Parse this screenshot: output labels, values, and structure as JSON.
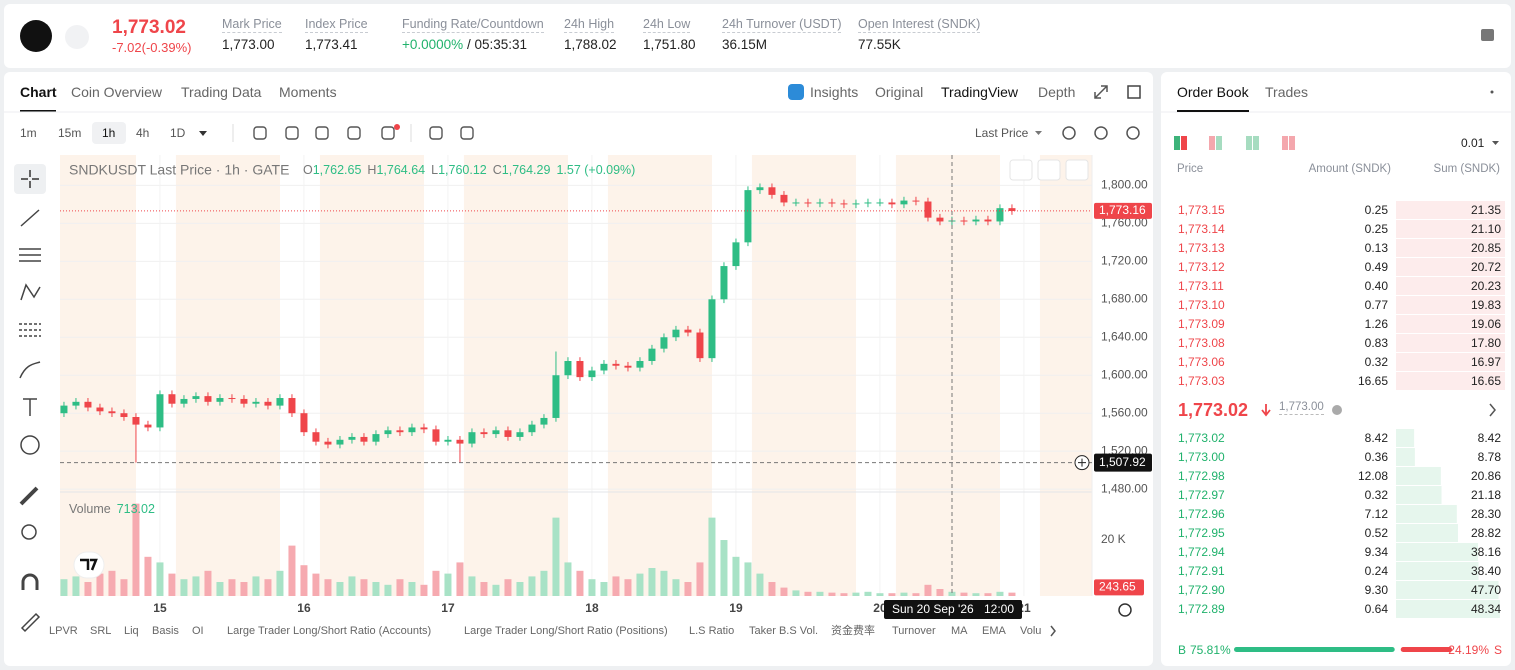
{
  "header": {
    "price": "1,773.02",
    "change": "-7.02(-0.39%)",
    "stats": [
      {
        "label": "Mark Price",
        "value": "1,773.00"
      },
      {
        "label": "Index Price",
        "value": "1,773.41"
      },
      {
        "label": "Funding Rate/Countdown",
        "value": "+0.0000%",
        "countdown": "/ 05:35:31"
      },
      {
        "label": "24h High",
        "value": "1,788.02"
      },
      {
        "label": "24h Low",
        "value": "1,751.80"
      },
      {
        "label": "24h Turnover (USDT)",
        "value": "36.15M"
      },
      {
        "label": "Open Interest (SNDK)",
        "value": "77.55K"
      }
    ]
  },
  "chart_tabs": [
    "Chart",
    "Coin Overview",
    "Trading Data",
    "Moments"
  ],
  "view_tabs": [
    "Insights",
    "Original",
    "TradingView",
    "Depth"
  ],
  "intervals": [
    "1m",
    "15m",
    "1h",
    "4h",
    "1D"
  ],
  "price_type": "Last Price",
  "indicators": [
    "LPVR",
    "SRL",
    "Liq",
    "Basis",
    "OI",
    "Large Trader Long/Short Ratio (Accounts)",
    "Large Trader Long/Short Ratio (Positions)",
    "L.S Ratio",
    "Taker B.S Vol.",
    "资金费率",
    "Turnover",
    "MA",
    "EMA",
    "Volu"
  ],
  "chart_data": {
    "type": "candlestick",
    "grid": true,
    "legend": {
      "title": "SNDKUSDT Last Price · 1h · GATE",
      "ohlc": [
        {
          "key": "O",
          "value": "1,762.65"
        },
        {
          "key": "H",
          "value": "1,764.64"
        },
        {
          "key": "L",
          "value": "1,760.12"
        },
        {
          "key": "C",
          "value": "1,764.29"
        }
      ],
      "change": "1.57 (+0.09%)"
    },
    "volume_legend": {
      "label": "Volume",
      "value": "713.02"
    },
    "up_color": "#2ebd85",
    "down_color": "#ef454a",
    "volume_up_color": "#a8e2c6",
    "volume_down_color": "#f6aab0",
    "xlim": [
      -0.33,
      85.67
    ],
    "xticks": [
      {
        "value": 8,
        "label": "15"
      },
      {
        "value": 20,
        "label": "16"
      },
      {
        "value": 32,
        "label": "17"
      },
      {
        "value": 44,
        "label": "18"
      },
      {
        "value": 56,
        "label": "19"
      },
      {
        "value": 68,
        "label": "20"
      },
      {
        "value": 80,
        "label": "21"
      }
    ],
    "ylim": [
      1477,
      1832
    ],
    "yticks": [
      {
        "value": 1480,
        "label": "1,480.00"
      },
      {
        "value": 1520,
        "label": "1,520.00"
      },
      {
        "value": 1560,
        "label": "1,560.00"
      },
      {
        "value": 1600,
        "label": "1,600.00"
      },
      {
        "value": 1640,
        "label": "1,640.00"
      },
      {
        "value": 1680,
        "label": "1,680.00"
      },
      {
        "value": 1720,
        "label": "1,720.00"
      },
      {
        "value": 1760,
        "label": "1,760.00"
      },
      {
        "value": 1800,
        "label": "1,800.00"
      }
    ],
    "volume_ylim": [
      0,
      36800
    ],
    "volume_yticks": [
      {
        "value": 20000,
        "label": "20 K"
      }
    ],
    "open": [
      1560,
      1568,
      1572,
      1566,
      1562,
      1560,
      1556,
      1548,
      1545,
      1580,
      1570,
      1575,
      1578,
      1572,
      1576,
      1575,
      1570,
      1572,
      1568,
      1576,
      1560,
      1540,
      1530,
      1527,
      1532,
      1535,
      1530,
      1538,
      1542,
      1540,
      1545,
      1543,
      1530,
      1532,
      1528,
      1540,
      1538,
      1542,
      1535,
      1540,
      1548,
      1555,
      1600,
      1615,
      1598,
      1605,
      1612,
      1610,
      1608,
      1615,
      1628,
      1640,
      1648,
      1645,
      1618,
      1680,
      1715,
      1740,
      1795,
      1798,
      1790,
      1782,
      1782,
      1781,
      1782,
      1781,
      1780,
      1781,
      1782,
      1782,
      1780,
      1784,
      1783,
      1766,
      1762,
      1763,
      1762,
      1764,
      1762,
      1776
    ],
    "high": [
      1572,
      1576,
      1576,
      1570,
      1566,
      1564,
      1560,
      1552,
      1584,
      1584,
      1579,
      1582,
      1582,
      1580,
      1580,
      1579,
      1576,
      1576,
      1580,
      1580,
      1564,
      1544,
      1534,
      1536,
      1539,
      1539,
      1542,
      1546,
      1546,
      1549,
      1549,
      1547,
      1536,
      1536,
      1544,
      1544,
      1546,
      1546,
      1544,
      1552,
      1559,
      1625,
      1619,
      1619,
      1609,
      1616,
      1616,
      1614,
      1619,
      1632,
      1644,
      1652,
      1652,
      1649,
      1684,
      1719,
      1744,
      1799,
      1802,
      1802,
      1794,
      1786,
      1786,
      1786,
      1786,
      1785,
      1785,
      1786,
      1786,
      1786,
      1788,
      1788,
      1787,
      1770,
      1767,
      1767,
      1768,
      1768,
      1780,
      1780
    ],
    "low": [
      1556,
      1564,
      1562,
      1558,
      1556,
      1552,
      1508,
      1541,
      1541,
      1566,
      1566,
      1571,
      1568,
      1568,
      1571,
      1566,
      1566,
      1564,
      1564,
      1556,
      1536,
      1526,
      1523,
      1523,
      1528,
      1526,
      1526,
      1534,
      1536,
      1536,
      1539,
      1526,
      1526,
      1508,
      1524,
      1534,
      1534,
      1531,
      1531,
      1536,
      1544,
      1551,
      1596,
      1594,
      1594,
      1601,
      1606,
      1604,
      1604,
      1611,
      1624,
      1636,
      1641,
      1614,
      1614,
      1676,
      1711,
      1736,
      1791,
      1786,
      1778,
      1778,
      1777,
      1777,
      1777,
      1776,
      1776,
      1777,
      1778,
      1776,
      1776,
      1779,
      1762,
      1758,
      1758,
      1758,
      1758,
      1758,
      1758,
      1769
    ],
    "close": [
      1568,
      1572,
      1566,
      1562,
      1560,
      1556,
      1548,
      1545,
      1580,
      1570,
      1575,
      1578,
      1572,
      1576,
      1575,
      1570,
      1572,
      1568,
      1576,
      1560,
      1540,
      1530,
      1527,
      1532,
      1535,
      1530,
      1538,
      1542,
      1540,
      1545,
      1543,
      1530,
      1532,
      1528,
      1540,
      1538,
      1542,
      1535,
      1540,
      1548,
      1555,
      1600,
      1615,
      1598,
      1605,
      1612,
      1610,
      1608,
      1615,
      1628,
      1640,
      1648,
      1645,
      1618,
      1680,
      1715,
      1740,
      1795,
      1798,
      1790,
      1782,
      1782,
      1781,
      1782,
      1781,
      1780,
      1781,
      1782,
      1782,
      1780,
      1784,
      1783,
      1766,
      1762,
      1763,
      1762,
      1764,
      1762,
      1776,
      1773
    ],
    "volume": [
      6000,
      7000,
      5000,
      8000,
      9000,
      6000,
      33000,
      14000,
      12000,
      8000,
      6000,
      7000,
      9000,
      5000,
      6000,
      5000,
      7000,
      6000,
      9000,
      18000,
      11000,
      8000,
      6000,
      5000,
      7000,
      6000,
      5000,
      4000,
      6000,
      5000,
      4000,
      9000,
      8000,
      12000,
      7000,
      5000,
      4000,
      6000,
      5000,
      7000,
      9000,
      28000,
      12000,
      9000,
      6000,
      5000,
      7000,
      6000,
      8000,
      10000,
      9000,
      6000,
      5000,
      12000,
      28000,
      20000,
      14000,
      12000,
      8000,
      5000,
      3000,
      2000,
      1500,
      1500,
      1200,
      1000,
      1200,
      1500,
      1000,
      1000,
      1200,
      1000,
      4000,
      2500,
      1500,
      1200,
      1000,
      1000,
      1500,
      1200
    ],
    "last_price": {
      "value": 1773.16,
      "label": "1,773.16"
    },
    "crosshair_price": {
      "value": 1507.92,
      "label": "1,507.92"
    },
    "crosshair_date": "Sun 20 Sep '26",
    "crosshair_time": "12:00",
    "last_volume": {
      "value": 243.65,
      "label": "243.65"
    }
  },
  "order_book": {
    "tabs": [
      "Order Book",
      "Trades"
    ],
    "step": "0.01",
    "columns": [
      "Price",
      "Amount (SNDK)",
      "Sum (SNDK)"
    ],
    "asks": [
      [
        "1,773.15",
        "0.25",
        "21.35"
      ],
      [
        "1,773.14",
        "0.25",
        "21.10"
      ],
      [
        "1,773.13",
        "0.13",
        "20.85"
      ],
      [
        "1,773.12",
        "0.49",
        "20.72"
      ],
      [
        "1,773.11",
        "0.40",
        "20.23"
      ],
      [
        "1,773.10",
        "0.77",
        "19.83"
      ],
      [
        "1,773.09",
        "1.26",
        "19.06"
      ],
      [
        "1,773.08",
        "0.83",
        "17.80"
      ],
      [
        "1,773.06",
        "0.32",
        "16.97"
      ],
      [
        "1,773.03",
        "16.65",
        "16.65"
      ]
    ],
    "mid": {
      "price": "1,773.02",
      "mark": "1,773.00"
    },
    "bids": [
      {
        "price": "1,773.02",
        "amount": "8.42",
        "sum": {
          "value": 8.42,
          "label": "8.42"
        }
      },
      {
        "price": "1,773.00",
        "amount": "0.36",
        "sum": {
          "value": 8.78,
          "label": "8.78"
        }
      },
      {
        "price": "1,772.98",
        "amount": "12.08",
        "sum": {
          "value": 20.86,
          "label": "20.86"
        }
      },
      {
        "price": "1,772.97",
        "amount": "0.32",
        "sum": {
          "value": 21.18,
          "label": "21.18"
        }
      },
      {
        "price": "1,772.96",
        "amount": "7.12",
        "sum": {
          "value": 28.3,
          "label": "28.30"
        }
      },
      {
        "price": "1,772.95",
        "amount": "0.52",
        "sum": {
          "value": 28.82,
          "label": "28.82"
        }
      },
      {
        "price": "1,772.94",
        "amount": "9.34",
        "sum": {
          "value": 38.16,
          "label": "38.16"
        }
      },
      {
        "price": "1,772.91",
        "amount": "0.24",
        "sum": {
          "value": 38.4,
          "label": "38.40"
        }
      },
      {
        "price": "1,772.90",
        "amount": "9.30",
        "sum": {
          "value": 47.7,
          "label": "47.70"
        }
      },
      {
        "price": "1,772.89",
        "amount": "0.64",
        "sum": {
          "value": 48.34,
          "label": "48.34"
        }
      }
    ],
    "ratio": {
      "buy_tag": "B",
      "buy": {
        "value": 75.81,
        "label": "75.81%"
      },
      "sell": {
        "value": 24.19,
        "label": "24.19%"
      },
      "sell_tag": "S"
    }
  }
}
